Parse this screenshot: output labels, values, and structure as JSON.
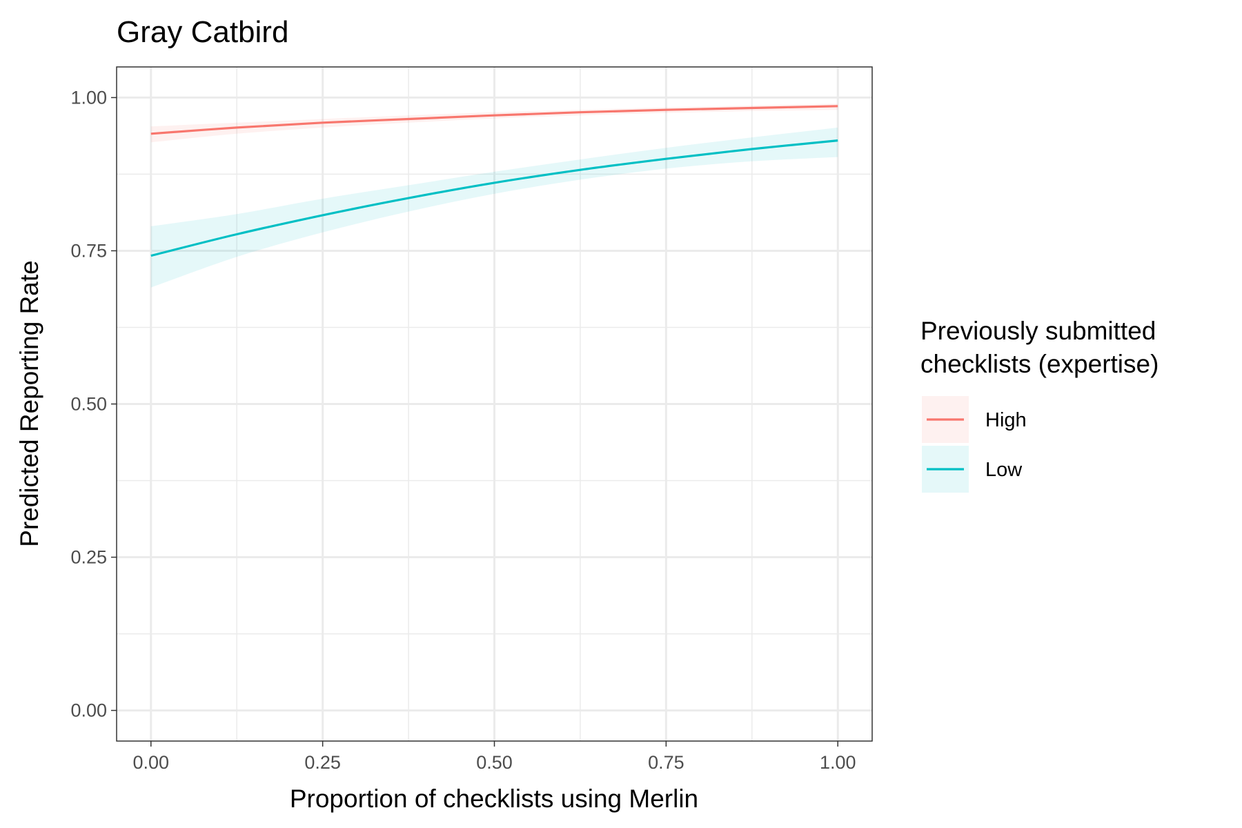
{
  "chart_data": {
    "type": "line",
    "title": "Gray Catbird",
    "xlabel": "Proportion of checklists using Merlin",
    "ylabel": "Predicted Reporting Rate",
    "xlim": [
      -0.05,
      1.05
    ],
    "ylim": [
      -0.05,
      1.05
    ],
    "x_ticks": [
      0,
      0.25,
      0.5,
      0.75,
      1
    ],
    "x_tick_labels": [
      "0.00",
      "0.25",
      "0.50",
      "0.75",
      "1.00"
    ],
    "y_ticks": [
      0,
      0.25,
      0.5,
      0.75,
      1
    ],
    "y_tick_labels": [
      "0.00",
      "0.25",
      "0.50",
      "0.75",
      "1.00"
    ],
    "grid": true,
    "legend": {
      "title_lines": [
        "Previously submitted",
        "checklists (expertise)"
      ],
      "position": "right"
    },
    "series": [
      {
        "name": "High",
        "color": "#F8766D",
        "ribbon_color": "#F8766D",
        "x": [
          0,
          0.125,
          0.25,
          0.375,
          0.5,
          0.625,
          0.75,
          0.875,
          1
        ],
        "y": [
          0.941,
          0.951,
          0.959,
          0.965,
          0.971,
          0.976,
          0.98,
          0.983,
          0.986
        ],
        "lower": [
          0.927,
          0.941,
          0.951,
          0.959,
          0.966,
          0.971,
          0.975,
          0.978,
          0.98
        ],
        "upper": [
          0.953,
          0.959,
          0.965,
          0.971,
          0.976,
          0.98,
          0.984,
          0.987,
          0.99
        ]
      },
      {
        "name": "Low",
        "color": "#00BFC4",
        "ribbon_color": "#00BFC4",
        "x": [
          0,
          0.125,
          0.25,
          0.375,
          0.5,
          0.625,
          0.75,
          0.875,
          1
        ],
        "y": [
          0.742,
          0.777,
          0.808,
          0.836,
          0.861,
          0.882,
          0.9,
          0.916,
          0.93
        ],
        "lower": [
          0.69,
          0.74,
          0.78,
          0.814,
          0.843,
          0.866,
          0.884,
          0.896,
          0.903
        ],
        "upper": [
          0.79,
          0.81,
          0.835,
          0.857,
          0.879,
          0.899,
          0.918,
          0.935,
          0.951
        ]
      }
    ]
  }
}
